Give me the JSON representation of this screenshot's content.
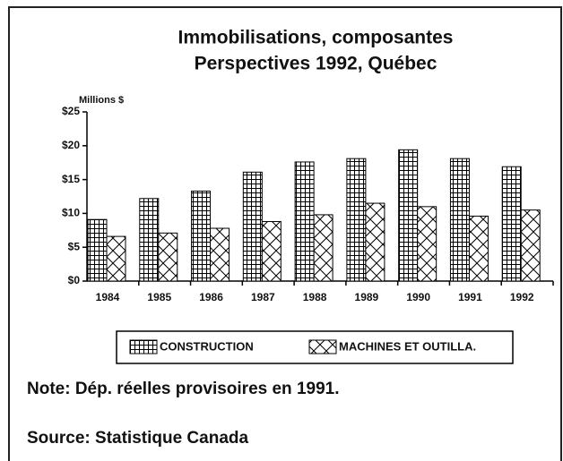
{
  "chart_data": {
    "type": "bar",
    "title": "Immobilisations, composantes",
    "subtitle": "Perspectives 1992, Québec",
    "y_label": "Millions $",
    "categories": [
      "1984",
      "1985",
      "1986",
      "1987",
      "1988",
      "1989",
      "1990",
      "1991",
      "1992"
    ],
    "series": [
      {
        "name": "CONSTRUCTION",
        "color": "#000000",
        "pattern": "grid",
        "values": [
          9.1,
          12.2,
          13.3,
          16.1,
          17.6,
          18.1,
          19.4,
          18.1,
          16.9
        ]
      },
      {
        "name": "MACHINES ET OUTILLA.",
        "color": "#000000",
        "pattern": "cross",
        "values": [
          6.6,
          7.1,
          7.8,
          8.8,
          9.8,
          11.5,
          11.0,
          9.6,
          10.5
        ]
      }
    ],
    "ylim": [
      0,
      25
    ],
    "yticks": [
      {
        "value": 0,
        "label": "$0"
      },
      {
        "value": 5,
        "label": "$5"
      },
      {
        "value": 10,
        "label": "$10"
      },
      {
        "value": 15,
        "label": "$15"
      },
      {
        "value": 20,
        "label": "$20"
      },
      {
        "value": 25,
        "label": "$25"
      }
    ],
    "legend": "bottom",
    "note": "Note: Dép. réelles provisoires en 1991.",
    "source": "Source: Statistique Canada"
  }
}
